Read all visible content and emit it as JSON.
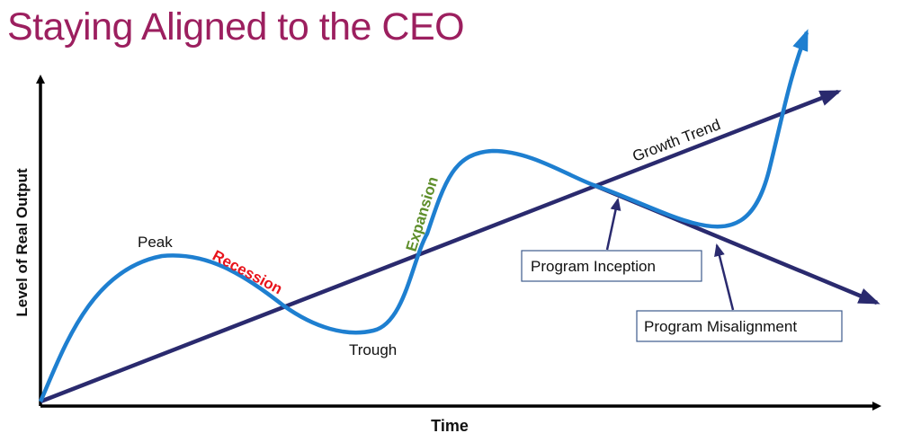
{
  "title": "Staying Aligned to the CEO",
  "axes": {
    "y_label": "Level of Real Output",
    "x_label": "Time"
  },
  "labels": {
    "peak": "Peak",
    "recession": "Recession",
    "trough": "Trough",
    "expansion": "Expansion",
    "growth_trend": "Growth Trend"
  },
  "callouts": {
    "program_inception": "Program Inception",
    "program_misalignment": "Program Misalignment"
  },
  "colors": {
    "title": "#9c1f5f",
    "trend_line": "#2a2a6e",
    "cycle_curve": "#1e7fd0",
    "recession": "#e8141c",
    "expansion": "#5e8e2a",
    "axes": "#000000",
    "callout_border": "#3d5b8c"
  }
}
